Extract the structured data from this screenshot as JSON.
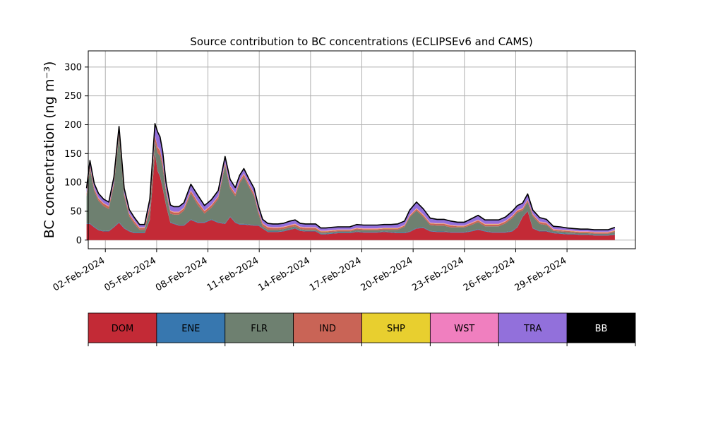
{
  "chart_data": {
    "type": "area",
    "title": "Source contribution to BC concentrations (ECLIPSEv6 and CAMS)",
    "xlabel": "",
    "ylabel": "BC concentration (ng m⁻³)",
    "ylim": [
      -15,
      328
    ],
    "xlim": [
      0.0,
      32.0
    ],
    "x_unit": "days since 01-Feb-2024 00:00",
    "grid": true,
    "x_ticks": [
      {
        "x": 1,
        "label": "02-Feb-2024"
      },
      {
        "x": 4,
        "label": "05-Feb-2024"
      },
      {
        "x": 7,
        "label": "08-Feb-2024"
      },
      {
        "x": 10,
        "label": "11-Feb-2024"
      },
      {
        "x": 13,
        "label": "14-Feb-2024"
      },
      {
        "x": 16,
        "label": "17-Feb-2024"
      },
      {
        "x": 19,
        "label": "20-Feb-2024"
      },
      {
        "x": 22,
        "label": "23-Feb-2024"
      },
      {
        "x": 25,
        "label": "26-Feb-2024"
      },
      {
        "x": 28,
        "label": "29-Feb-2024"
      }
    ],
    "y_ticks": [
      0,
      50,
      100,
      150,
      200,
      250,
      300
    ],
    "series_colors": {
      "DOM": "#c32a36",
      "ENE": "#3777af",
      "FLR": "#6e8070",
      "IND": "#c96456",
      "SHP": "#e8cf2f",
      "WST": "#f07fbf",
      "TRA": "#9270db",
      "BB": "#000000"
    },
    "x": [
      -0.1,
      0.1,
      0.35,
      0.6,
      0.9,
      1.2,
      1.5,
      1.8,
      2.1,
      2.4,
      2.7,
      3.0,
      3.3,
      3.6,
      3.9,
      4.05,
      4.2,
      4.35,
      4.55,
      4.8,
      5.0,
      5.3,
      5.6,
      6.0,
      6.4,
      6.8,
      7.2,
      7.6,
      8.0,
      8.3,
      8.6,
      8.85,
      9.1,
      9.4,
      9.7,
      9.95,
      10.2,
      10.5,
      10.8,
      11.1,
      11.4,
      11.8,
      12.1,
      12.4,
      12.7,
      13.0,
      13.3,
      13.6,
      13.9,
      14.2,
      14.6,
      15.0,
      15.3,
      15.7,
      16.1,
      16.5,
      16.9,
      17.3,
      17.7,
      18.1,
      18.5,
      18.8,
      19.2,
      19.6,
      20.0,
      20.4,
      20.8,
      21.2,
      21.6,
      22.0,
      22.4,
      22.8,
      23.2,
      23.6,
      24.0,
      24.4,
      24.8,
      25.1,
      25.4,
      25.7,
      26.0,
      26.4,
      26.8,
      27.2,
      27.6,
      28.0,
      28.4,
      28.8,
      29.2,
      29.6,
      30.0,
      30.4,
      30.8
    ],
    "series": [
      {
        "name": "DOM",
        "values": [
          28,
          28,
          22,
          17,
          15,
          15,
          22,
          30,
          20,
          15,
          12,
          12,
          12,
          35,
          150,
          120,
          110,
          90,
          60,
          30,
          28,
          25,
          25,
          35,
          30,
          30,
          35,
          30,
          28,
          40,
          30,
          27,
          27,
          26,
          25,
          25,
          20,
          14,
          14,
          14,
          15,
          18,
          20,
          16,
          15,
          15,
          15,
          10,
          10,
          11,
          12,
          12,
          12,
          14,
          13,
          13,
          13,
          14,
          13,
          12,
          12,
          14,
          20,
          21,
          15,
          14,
          14,
          13,
          13,
          13,
          15,
          18,
          15,
          13,
          13,
          13,
          15,
          22,
          40,
          50,
          20,
          15,
          15,
          12,
          11,
          10,
          10,
          9,
          9,
          8,
          8,
          8,
          9
        ]
      },
      {
        "name": "ENE",
        "values": [
          1,
          1,
          1,
          1,
          1,
          1,
          1,
          1,
          1,
          1,
          1,
          1,
          1,
          1,
          1,
          1,
          1,
          1,
          1,
          1,
          1,
          1,
          1,
          1,
          1,
          1,
          1,
          1,
          1,
          1,
          1,
          1,
          1,
          1,
          1,
          1,
          1,
          1,
          1,
          1,
          1,
          1,
          1,
          1,
          1,
          1,
          1,
          1,
          1,
          1,
          1,
          1,
          1,
          1,
          1,
          1,
          1,
          1,
          1,
          1,
          1,
          1,
          1,
          1,
          1,
          1,
          1,
          1,
          1,
          1,
          1,
          1,
          1,
          1,
          1,
          1,
          1,
          1,
          1,
          1,
          1,
          1,
          1,
          1,
          1,
          1,
          1,
          1,
          1,
          1,
          1,
          1,
          1
        ]
      },
      {
        "name": "FLR",
        "values": [
          47,
          95,
          62,
          50,
          43,
          38,
          72,
          150,
          55,
          25,
          15,
          5,
          5,
          15,
          20,
          30,
          35,
          35,
          20,
          15,
          15,
          18,
          25,
          45,
          30,
          15,
          20,
          40,
          100,
          48,
          45,
          70,
          82,
          65,
          50,
          20,
          3,
          3,
          3,
          3,
          3,
          3,
          3,
          2,
          2,
          2,
          2,
          2,
          2,
          2,
          2,
          2,
          2,
          3,
          3,
          3,
          3,
          3,
          4,
          5,
          10,
          25,
          30,
          18,
          10,
          10,
          10,
          8,
          8,
          8,
          10,
          12,
          8,
          10,
          10,
          15,
          22,
          25,
          10,
          15,
          20,
          12,
          10,
          3,
          3,
          3,
          2,
          2,
          2,
          2,
          2,
          2,
          4
        ]
      },
      {
        "name": "IND",
        "values": [
          4,
          4,
          4,
          4,
          4,
          4,
          4,
          4,
          4,
          4,
          4,
          3,
          3,
          8,
          9,
          10,
          9,
          8,
          5,
          4,
          4,
          4,
          4,
          4,
          5,
          4,
          4,
          4,
          4,
          4,
          4,
          4,
          4,
          4,
          4,
          4,
          4,
          4,
          3,
          3,
          3,
          3,
          3,
          3,
          3,
          3,
          3,
          2,
          2,
          2,
          2,
          2,
          2,
          2,
          2,
          2,
          2,
          2,
          2,
          2,
          2,
          2,
          3,
          3,
          3,
          3,
          3,
          3,
          2,
          2,
          3,
          3,
          3,
          3,
          3,
          3,
          3,
          3,
          3,
          3,
          3,
          3,
          3,
          2,
          2,
          2,
          2,
          2,
          2,
          2,
          2,
          2,
          2
        ]
      },
      {
        "name": "SHP",
        "values": [
          0.5,
          0.5,
          0.5,
          0.5,
          0.5,
          0.5,
          0.5,
          0.5,
          0.5,
          0.5,
          0.5,
          0.5,
          0.5,
          0.5,
          0.5,
          0.5,
          0.5,
          0.5,
          0.5,
          0.5,
          0.5,
          0.5,
          0.5,
          0.5,
          0.5,
          0.5,
          0.5,
          0.5,
          0.5,
          0.5,
          0.5,
          0.5,
          0.5,
          0.5,
          0.5,
          0.5,
          0.5,
          0.5,
          0.5,
          0.5,
          0.5,
          0.5,
          0.5,
          0.5,
          0.5,
          0.5,
          0.5,
          0.5,
          0.5,
          0.5,
          0.5,
          0.5,
          0.5,
          0.5,
          0.5,
          0.5,
          0.5,
          0.5,
          0.5,
          0.5,
          0.5,
          0.5,
          0.5,
          0.5,
          0.5,
          0.5,
          0.5,
          0.5,
          0.5,
          0.5,
          0.5,
          0.5,
          0.5,
          0.5,
          0.5,
          0.5,
          0.5,
          0.5,
          0.5,
          0.5,
          0.5,
          0.5,
          0.5,
          0.5,
          0.5,
          0.5,
          0.5,
          0.5,
          0.5,
          0.5,
          0.5,
          0.5,
          0.5
        ]
      },
      {
        "name": "WST",
        "values": [
          1,
          1,
          1,
          1,
          1,
          1,
          1,
          1,
          1,
          1,
          1,
          1,
          1,
          1,
          1,
          1,
          1,
          1,
          1,
          1,
          1,
          1,
          1,
          1,
          1,
          1,
          1,
          1,
          1,
          1,
          1,
          1,
          1,
          1,
          1,
          1,
          1,
          1,
          1,
          1,
          1,
          1,
          1,
          1,
          1,
          1,
          1,
          1,
          1,
          1,
          1,
          1,
          1,
          1,
          1,
          1,
          1,
          1,
          1,
          1,
          1,
          1,
          1,
          1,
          1,
          1,
          1,
          1,
          1,
          1,
          1,
          1,
          1,
          1,
          1,
          1,
          1,
          1,
          1,
          1,
          1,
          1,
          1,
          1,
          1,
          1,
          1,
          1,
          1,
          1,
          1,
          1,
          1
        ]
      },
      {
        "name": "TRA",
        "values": [
          8,
          8,
          7,
          7,
          6,
          6,
          8,
          10,
          8,
          6,
          5,
          4,
          4,
          10,
          20,
          25,
          22,
          18,
          12,
          9,
          8,
          8,
          8,
          10,
          10,
          8,
          8,
          9,
          10,
          10,
          9,
          8,
          8,
          8,
          8,
          7,
          6,
          5,
          5,
          5,
          5,
          6,
          6,
          5,
          5,
          5,
          5,
          4,
          4,
          4,
          4,
          4,
          4,
          5,
          5,
          5,
          5,
          5,
          5,
          6,
          6,
          8,
          10,
          9,
          7,
          6,
          6,
          6,
          5,
          5,
          6,
          7,
          6,
          6,
          6,
          6,
          7,
          7,
          8,
          9,
          6,
          6,
          5,
          4,
          4,
          3,
          3,
          3,
          3,
          3,
          3,
          3,
          4
        ]
      },
      {
        "name": "BB",
        "values": [
          0.5,
          0.5,
          0.5,
          0.5,
          0.5,
          0.5,
          0.5,
          0.5,
          0.5,
          0.5,
          0.5,
          0.5,
          0.5,
          0.5,
          0.5,
          0.5,
          0.5,
          0.5,
          0.5,
          0.5,
          0.5,
          0.5,
          0.5,
          0.5,
          0.5,
          0.5,
          0.5,
          0.5,
          0.5,
          0.5,
          0.5,
          0.5,
          0.5,
          0.5,
          0.5,
          0.5,
          0.5,
          0.5,
          0.5,
          0.5,
          0.5,
          0.5,
          0.5,
          0.5,
          0.5,
          0.5,
          0.5,
          0.5,
          0.5,
          0.5,
          0.5,
          0.5,
          0.5,
          0.5,
          0.5,
          0.5,
          0.5,
          0.5,
          0.5,
          0.5,
          0.5,
          0.5,
          0.5,
          0.5,
          0.5,
          0.5,
          0.5,
          0.5,
          0.5,
          0.5,
          0.5,
          0.5,
          0.5,
          0.5,
          0.5,
          0.5,
          0.5,
          0.5,
          0.5,
          0.5,
          0.5,
          0.5,
          0.5,
          0.5,
          0.5,
          0.5,
          0.5,
          0.5,
          0.5,
          0.5,
          0.5,
          0.5,
          0.5
        ]
      }
    ],
    "legend": {
      "placement": "bottom",
      "entries": [
        "DOM",
        "ENE",
        "FLR",
        "IND",
        "SHP",
        "WST",
        "TRA",
        "BB"
      ]
    }
  }
}
